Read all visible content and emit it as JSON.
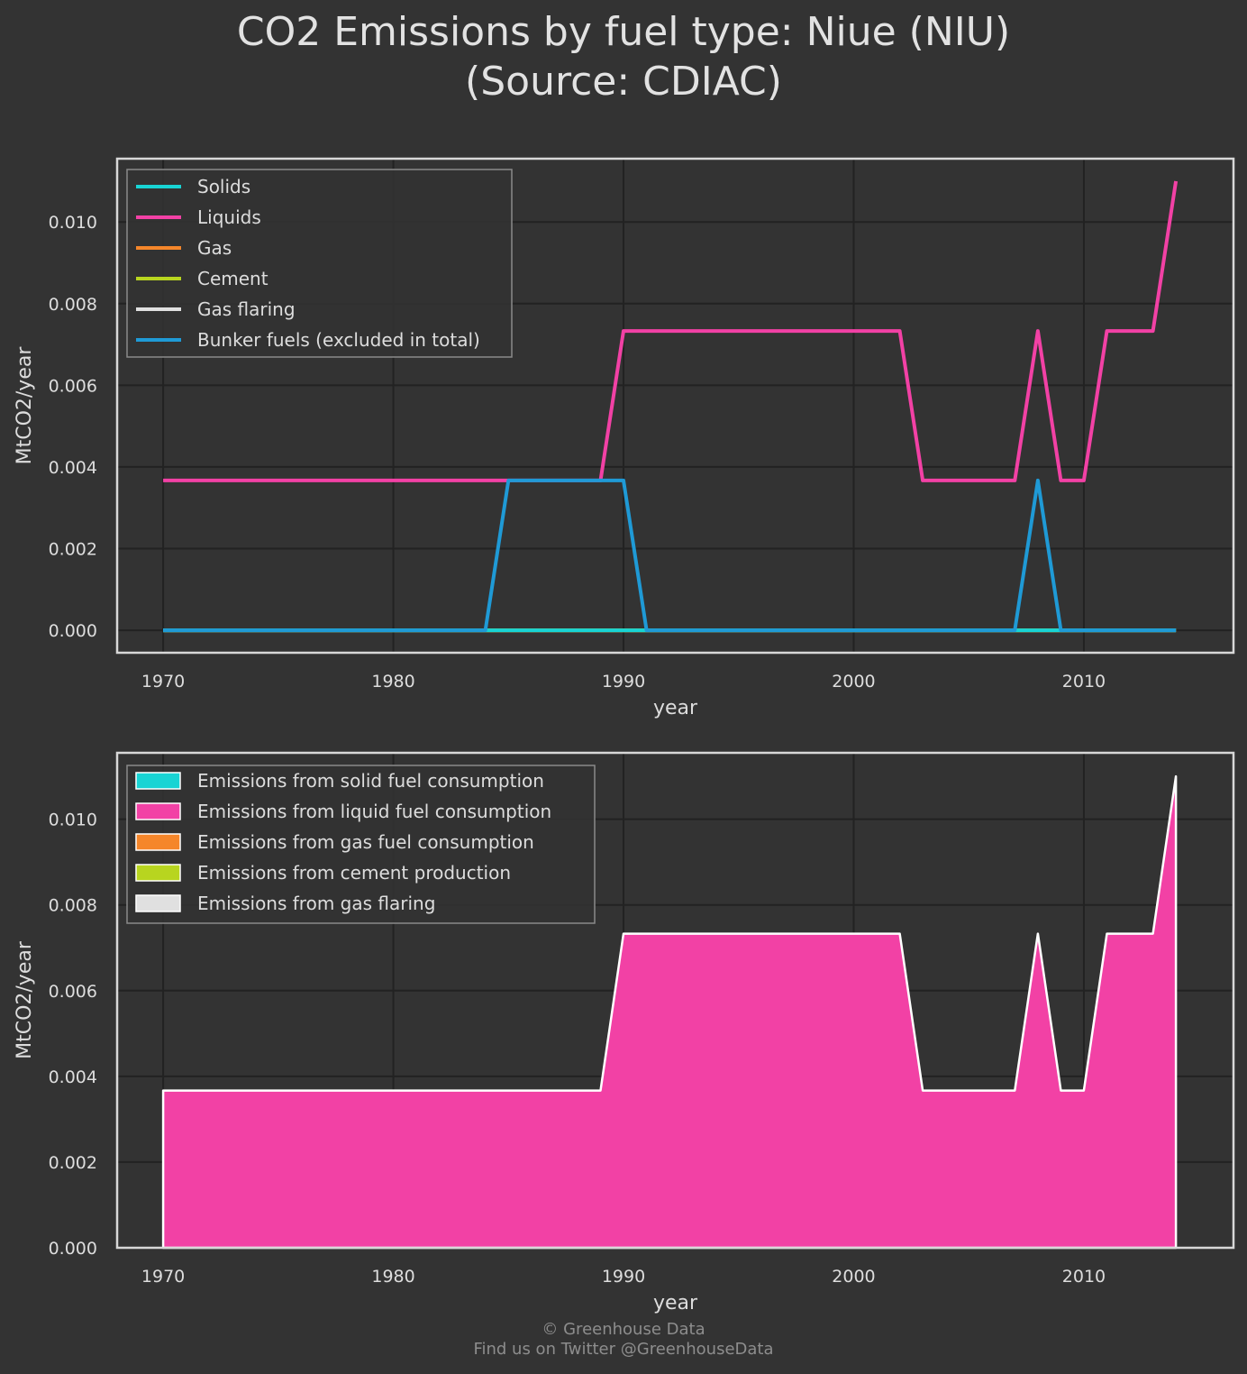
{
  "title_line1": "CO2 Emissions by fuel type: Niue (NIU)",
  "title_line2": "(Source: CDIAC)",
  "footer_line1": "© Greenhouse Data",
  "footer_line2": "Find us on Twitter @GreenhouseData",
  "colors": {
    "background": "#333333",
    "grid": "#222222",
    "frame": "#d8d8d8",
    "text": "#dddddd",
    "solids": "#18d4d4",
    "liquids": "#f241a5",
    "gas": "#f5862a",
    "cement": "#b8d51f",
    "flaring": "#e0e0e0",
    "bunker": "#1f9ad6"
  },
  "chart_data": [
    {
      "type": "line",
      "xlabel": "year",
      "ylabel": "MtCO2/year",
      "xlim": [
        1968,
        2016.5
      ],
      "ylim": [
        -0.00055,
        0.01155
      ],
      "xticks": [
        1970,
        1980,
        1990,
        2000,
        2010
      ],
      "yticks": [
        "0.000",
        "0.002",
        "0.004",
        "0.006",
        "0.008",
        "0.010"
      ],
      "grid": true,
      "legend_position": "top-left",
      "x": [
        1970,
        1971,
        1972,
        1973,
        1974,
        1975,
        1976,
        1977,
        1978,
        1979,
        1980,
        1981,
        1982,
        1983,
        1984,
        1985,
        1986,
        1987,
        1988,
        1989,
        1990,
        1991,
        1992,
        1993,
        1994,
        1995,
        1996,
        1997,
        1998,
        1999,
        2000,
        2001,
        2002,
        2003,
        2004,
        2005,
        2006,
        2007,
        2008,
        2009,
        2010,
        2011,
        2012,
        2013,
        2014
      ],
      "series": [
        {
          "name": "Solids",
          "color_key": "solids",
          "values": [
            0,
            0,
            0,
            0,
            0,
            0,
            0,
            0,
            0,
            0,
            0,
            0,
            0,
            0,
            0,
            0,
            0,
            0,
            0,
            0,
            0,
            0,
            0,
            0,
            0,
            0,
            0,
            0,
            0,
            0,
            0,
            0,
            0,
            0,
            0,
            0,
            0,
            0,
            0,
            0,
            0,
            0,
            0,
            0,
            0
          ]
        },
        {
          "name": "Liquids",
          "color_key": "liquids",
          "values": [
            0.00367,
            0.00367,
            0.00367,
            0.00367,
            0.00367,
            0.00367,
            0.00367,
            0.00367,
            0.00367,
            0.00367,
            0.00367,
            0.00367,
            0.00367,
            0.00367,
            0.00367,
            0.00367,
            0.00367,
            0.00367,
            0.00367,
            0.00367,
            0.00733,
            0.00733,
            0.00733,
            0.00733,
            0.00733,
            0.00733,
            0.00733,
            0.00733,
            0.00733,
            0.00733,
            0.00733,
            0.00733,
            0.00733,
            0.00367,
            0.00367,
            0.00367,
            0.00367,
            0.00367,
            0.00733,
            0.00367,
            0.00367,
            0.00733,
            0.00733,
            0.00733,
            0.011
          ]
        },
        {
          "name": "Gas",
          "color_key": "gas",
          "values": [
            0,
            0,
            0,
            0,
            0,
            0,
            0,
            0,
            0,
            0,
            0,
            0,
            0,
            0,
            0,
            0,
            0,
            0,
            0,
            0,
            0,
            0,
            0,
            0,
            0,
            0,
            0,
            0,
            0,
            0,
            0,
            0,
            0,
            0,
            0,
            0,
            0,
            0,
            0,
            0,
            0,
            0,
            0,
            0,
            0
          ]
        },
        {
          "name": "Cement",
          "color_key": "cement",
          "values": [
            0,
            0,
            0,
            0,
            0,
            0,
            0,
            0,
            0,
            0,
            0,
            0,
            0,
            0,
            0,
            0,
            0,
            0,
            0,
            0,
            0,
            0,
            0,
            0,
            0,
            0,
            0,
            0,
            0,
            0,
            0,
            0,
            0,
            0,
            0,
            0,
            0,
            0,
            0,
            0,
            0,
            0,
            0,
            0,
            0
          ]
        },
        {
          "name": "Gas flaring",
          "color_key": "flaring",
          "values": [
            0,
            0,
            0,
            0,
            0,
            0,
            0,
            0,
            0,
            0,
            0,
            0,
            0,
            0,
            0,
            0,
            0,
            0,
            0,
            0,
            0,
            0,
            0,
            0,
            0,
            0,
            0,
            0,
            0,
            0,
            0,
            0,
            0,
            0,
            0,
            0,
            0,
            0,
            0,
            0,
            0,
            0,
            0,
            0,
            0
          ]
        },
        {
          "name": "Bunker fuels (excluded in total)",
          "color_key": "bunker",
          "values": [
            0,
            0,
            0,
            0,
            0,
            0,
            0,
            0,
            0,
            0,
            0,
            0,
            0,
            0,
            0,
            0.00367,
            0.00367,
            0.00367,
            0.00367,
            0.00367,
            0.00367,
            0,
            0,
            0,
            0,
            0,
            0,
            0,
            0,
            0,
            0,
            0,
            0,
            0,
            0,
            0,
            0,
            0,
            0.00367,
            0,
            0,
            0,
            0,
            0,
            0
          ]
        }
      ]
    },
    {
      "type": "area",
      "stacked": true,
      "xlabel": "year",
      "ylabel": "MtCO2/year",
      "xlim": [
        1968,
        2016.5
      ],
      "ylim": [
        0,
        0.01155
      ],
      "xticks": [
        1970,
        1980,
        1990,
        2000,
        2010
      ],
      "yticks": [
        "0.000",
        "0.002",
        "0.004",
        "0.006",
        "0.008",
        "0.010"
      ],
      "grid": true,
      "legend_position": "top-left",
      "x": [
        1970,
        1971,
        1972,
        1973,
        1974,
        1975,
        1976,
        1977,
        1978,
        1979,
        1980,
        1981,
        1982,
        1983,
        1984,
        1985,
        1986,
        1987,
        1988,
        1989,
        1990,
        1991,
        1992,
        1993,
        1994,
        1995,
        1996,
        1997,
        1998,
        1999,
        2000,
        2001,
        2002,
        2003,
        2004,
        2005,
        2006,
        2007,
        2008,
        2009,
        2010,
        2011,
        2012,
        2013,
        2014
      ],
      "series": [
        {
          "name": "Emissions from solid fuel consumption",
          "color_key": "solids",
          "values": [
            0,
            0,
            0,
            0,
            0,
            0,
            0,
            0,
            0,
            0,
            0,
            0,
            0,
            0,
            0,
            0,
            0,
            0,
            0,
            0,
            0,
            0,
            0,
            0,
            0,
            0,
            0,
            0,
            0,
            0,
            0,
            0,
            0,
            0,
            0,
            0,
            0,
            0,
            0,
            0,
            0,
            0,
            0,
            0,
            0
          ]
        },
        {
          "name": "Emissions from liquid fuel consumption",
          "color_key": "liquids",
          "values": [
            0.00367,
            0.00367,
            0.00367,
            0.00367,
            0.00367,
            0.00367,
            0.00367,
            0.00367,
            0.00367,
            0.00367,
            0.00367,
            0.00367,
            0.00367,
            0.00367,
            0.00367,
            0.00367,
            0.00367,
            0.00367,
            0.00367,
            0.00367,
            0.00733,
            0.00733,
            0.00733,
            0.00733,
            0.00733,
            0.00733,
            0.00733,
            0.00733,
            0.00733,
            0.00733,
            0.00733,
            0.00733,
            0.00733,
            0.00367,
            0.00367,
            0.00367,
            0.00367,
            0.00367,
            0.00733,
            0.00367,
            0.00367,
            0.00733,
            0.00733,
            0.00733,
            0.011
          ]
        },
        {
          "name": "Emissions from gas fuel consumption",
          "color_key": "gas",
          "values": [
            0,
            0,
            0,
            0,
            0,
            0,
            0,
            0,
            0,
            0,
            0,
            0,
            0,
            0,
            0,
            0,
            0,
            0,
            0,
            0,
            0,
            0,
            0,
            0,
            0,
            0,
            0,
            0,
            0,
            0,
            0,
            0,
            0,
            0,
            0,
            0,
            0,
            0,
            0,
            0,
            0,
            0,
            0,
            0,
            0
          ]
        },
        {
          "name": "Emissions from cement production",
          "color_key": "cement",
          "values": [
            0,
            0,
            0,
            0,
            0,
            0,
            0,
            0,
            0,
            0,
            0,
            0,
            0,
            0,
            0,
            0,
            0,
            0,
            0,
            0,
            0,
            0,
            0,
            0,
            0,
            0,
            0,
            0,
            0,
            0,
            0,
            0,
            0,
            0,
            0,
            0,
            0,
            0,
            0,
            0,
            0,
            0,
            0,
            0,
            0
          ]
        },
        {
          "name": "Emissions from gas flaring",
          "color_key": "flaring",
          "values": [
            0,
            0,
            0,
            0,
            0,
            0,
            0,
            0,
            0,
            0,
            0,
            0,
            0,
            0,
            0,
            0,
            0,
            0,
            0,
            0,
            0,
            0,
            0,
            0,
            0,
            0,
            0,
            0,
            0,
            0,
            0,
            0,
            0,
            0,
            0,
            0,
            0,
            0,
            0,
            0,
            0,
            0,
            0,
            0,
            0
          ]
        }
      ]
    }
  ]
}
